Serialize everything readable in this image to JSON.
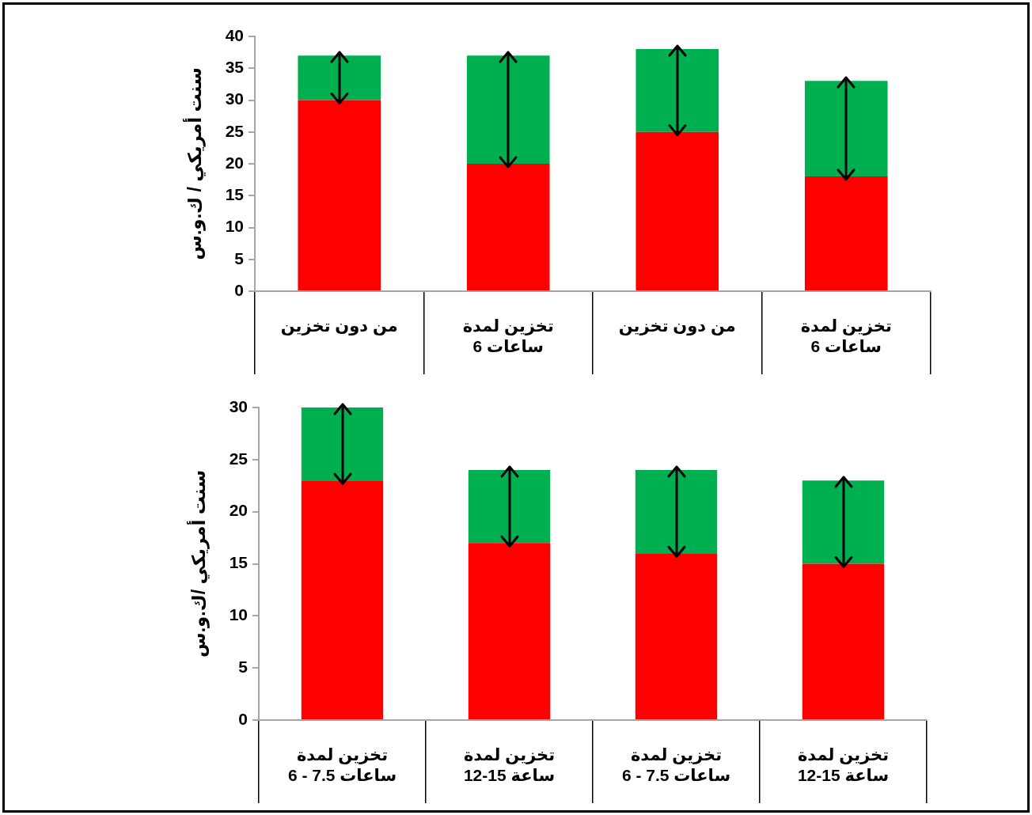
{
  "chart_data": [
    {
      "type": "bar",
      "ylabel": "سنت أمريكي / ك.و.س",
      "categories": [
        "من دون تخزين",
        "تخزين لمدة\n6 ساعات",
        "من دون تخزين",
        "تخزين لمدة\n6 ساعات"
      ],
      "stacked": true,
      "ylim": [
        0,
        40
      ],
      "yticks": [
        0,
        5,
        10,
        15,
        20,
        25,
        30,
        35,
        40
      ],
      "series": [
        {
          "color": "#ff0000",
          "values": [
            30,
            20,
            25,
            18
          ]
        },
        {
          "color": "#00b050",
          "values": [
            7,
            17,
            13,
            15
          ]
        }
      ]
    },
    {
      "type": "bar",
      "ylabel": "سنت أمريكي /ك.و.س",
      "categories": [
        "تخزين لمدة\n6 - 7.5 ساعات",
        "تخزين لمدة\n12-15 ساعة",
        "تخزين لمدة\n6 - 7.5 ساعات",
        "تخزين لمدة\n12-15 ساعة"
      ],
      "stacked": true,
      "ylim": [
        0,
        30
      ],
      "yticks": [
        0,
        5,
        10,
        15,
        20,
        25,
        30
      ],
      "series": [
        {
          "color": "#ff0000",
          "values": [
            23,
            17,
            16,
            15
          ]
        },
        {
          "color": "#00b050",
          "values": [
            7,
            7,
            8,
            8
          ]
        }
      ]
    }
  ]
}
